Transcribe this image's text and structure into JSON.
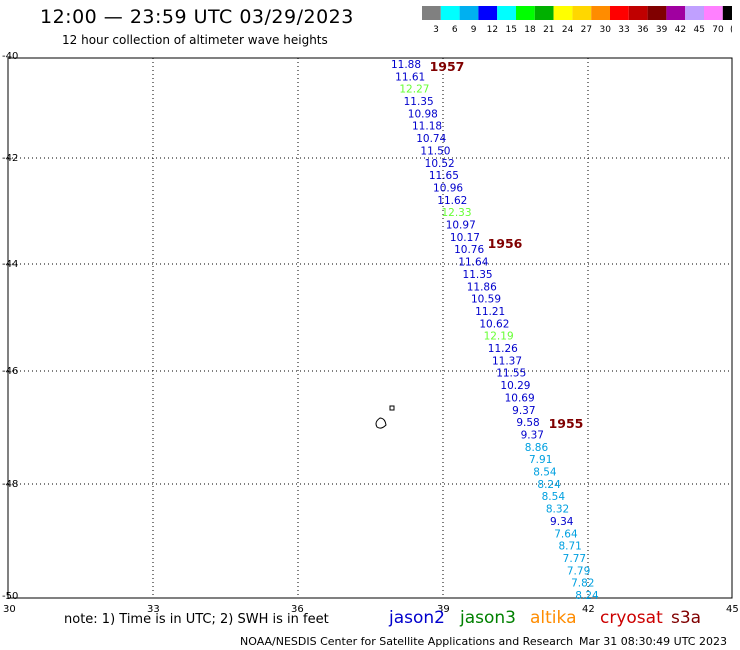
{
  "header": {
    "title": "12:00 — 23:59 UTC 03/29/2023",
    "subtitle": "12 hour collection of altimeter wave heights"
  },
  "colorbar": {
    "colors": [
      "#808080",
      "#00ffff",
      "#00b0f0",
      "#0000ff",
      "#00ffff",
      "#00ff00",
      "#00b000",
      "#ffff00",
      "#ffd700",
      "#ff8c00",
      "#ff0000",
      "#c00000",
      "#800000",
      "#a000a0",
      "#c0a0ff",
      "#ff80ff",
      "#000000"
    ],
    "labels": [
      "3",
      "6",
      "9",
      "12",
      "15",
      "18",
      "21",
      "24",
      "27",
      "30",
      "33",
      "36",
      "39",
      "42",
      "45",
      "70",
      "(ft)"
    ]
  },
  "axes": {
    "y_labels": [
      "-40",
      "-42",
      "-44",
      "-46",
      "-48",
      "-50"
    ],
    "x_labels": [
      "30",
      "33",
      "36",
      "39",
      "42",
      "45"
    ]
  },
  "tracks": [
    {
      "label": "1957",
      "color": "#800000"
    },
    {
      "label": "1956",
      "color": "#800000"
    },
    {
      "label": "1955",
      "color": "#800000"
    }
  ],
  "observations": [
    {
      "v": "11.88",
      "c": "#0000cc"
    },
    {
      "v": "11.61",
      "c": "#0000cc"
    },
    {
      "v": "12.27",
      "c": "#66ff33"
    },
    {
      "v": "11.35",
      "c": "#0000cc"
    },
    {
      "v": "10.98",
      "c": "#0000cc"
    },
    {
      "v": "11.18",
      "c": "#0000cc"
    },
    {
      "v": "10.74",
      "c": "#0000cc"
    },
    {
      "v": "11.50",
      "c": "#0000cc"
    },
    {
      "v": "10.52",
      "c": "#0000cc"
    },
    {
      "v": "11.65",
      "c": "#0000cc"
    },
    {
      "v": "10.96",
      "c": "#0000cc"
    },
    {
      "v": "11.62",
      "c": "#0000cc"
    },
    {
      "v": "12.33",
      "c": "#66ff33"
    },
    {
      "v": "10.97",
      "c": "#0000cc"
    },
    {
      "v": "10.17",
      "c": "#0000cc"
    },
    {
      "v": "10.76",
      "c": "#0000cc"
    },
    {
      "v": "11.64",
      "c": "#0000cc"
    },
    {
      "v": "11.35",
      "c": "#0000cc"
    },
    {
      "v": "11.86",
      "c": "#0000cc"
    },
    {
      "v": "10.59",
      "c": "#0000cc"
    },
    {
      "v": "11.21",
      "c": "#0000cc"
    },
    {
      "v": "10.62",
      "c": "#0000cc"
    },
    {
      "v": "12.19",
      "c": "#66ff33"
    },
    {
      "v": "11.26",
      "c": "#0000cc"
    },
    {
      "v": "11.37",
      "c": "#0000cc"
    },
    {
      "v": "11.55",
      "c": "#0000cc"
    },
    {
      "v": "10.29",
      "c": "#0000cc"
    },
    {
      "v": "10.69",
      "c": "#0000cc"
    },
    {
      "v": "9.37",
      "c": "#0000cc"
    },
    {
      "v": "9.58",
      "c": "#0000cc"
    },
    {
      "v": "9.37",
      "c": "#0000cc"
    },
    {
      "v": "8.86",
      "c": "#00a0e0"
    },
    {
      "v": "7.91",
      "c": "#00a0e0"
    },
    {
      "v": "8.54",
      "c": "#00a0e0"
    },
    {
      "v": "8.24",
      "c": "#00a0e0"
    },
    {
      "v": "8.54",
      "c": "#00a0e0"
    },
    {
      "v": "8.32",
      "c": "#00a0e0"
    },
    {
      "v": "9.34",
      "c": "#0000cc"
    },
    {
      "v": "7.64",
      "c": "#00a0e0"
    },
    {
      "v": "8.71",
      "c": "#00a0e0"
    },
    {
      "v": "7.77",
      "c": "#00a0e0"
    },
    {
      "v": "7.79",
      "c": "#00a0e0"
    },
    {
      "v": "7.82",
      "c": "#00a0e0"
    },
    {
      "v": "8.24",
      "c": "#00a0e0"
    }
  ],
  "footer": {
    "note": "note: 1) Time is in UTC; 2) SWH is in feet",
    "legend": [
      {
        "name": "jason2",
        "color": "#0000cc"
      },
      {
        "name": "jason3",
        "color": "#008000"
      },
      {
        "name": "altika",
        "color": "#ff8c00"
      },
      {
        "name": "cryosat",
        "color": "#cc0000"
      },
      {
        "name": "s3a",
        "color": "#800000"
      }
    ],
    "credit": "NOAA/NESDIS Center for Satellite Applications and Research",
    "timestamp": "Mar 31 08:30:49 UTC 2023"
  }
}
